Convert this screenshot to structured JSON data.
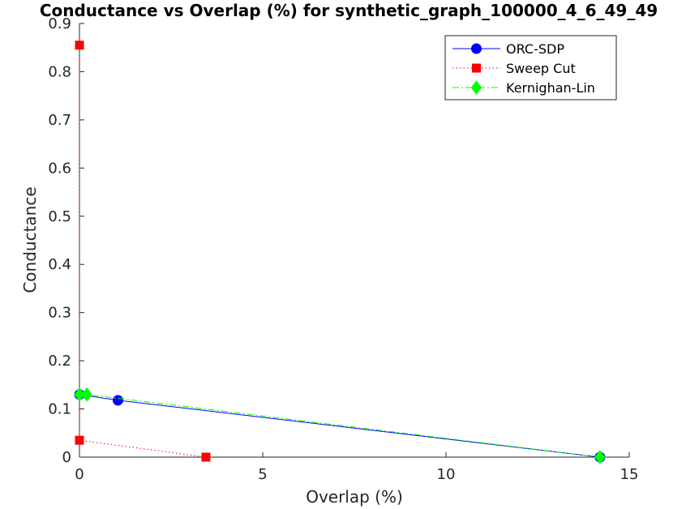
{
  "chart_data": {
    "type": "line",
    "title": "Conductance vs Overlap (%) for synthetic_graph_100000_4_6_49_49",
    "xlabel": "Overlap (%)",
    "ylabel": "Conductance",
    "xlim": [
      0,
      15
    ],
    "ylim": [
      0,
      0.9
    ],
    "xticks": [
      "0",
      "5",
      "10",
      "15"
    ],
    "yticks": [
      "0",
      "0.1",
      "0.2",
      "0.3",
      "0.4",
      "0.5",
      "0.6",
      "0.7",
      "0.8",
      "0.9"
    ],
    "grid": false,
    "legend_position": "top-right",
    "series": [
      {
        "name": "ORC-SDP",
        "color": "#0000ff",
        "line_style": "solid",
        "marker": "circle",
        "x": [
          0,
          1.05,
          14.2
        ],
        "y": [
          0.13,
          0.118,
          0.0
        ]
      },
      {
        "name": "Sweep Cut",
        "color": "#ff0000",
        "line_style": "dotted",
        "marker": "square",
        "x": [
          0,
          0,
          3.45
        ],
        "y": [
          0.855,
          0.035,
          0.0
        ]
      },
      {
        "name": "Kernighan-Lin",
        "color": "#00ff00",
        "line_style": "dashdot",
        "marker": "diamond",
        "x": [
          0,
          0.2,
          14.2
        ],
        "y": [
          0.13,
          0.13,
          0.0
        ]
      }
    ]
  }
}
